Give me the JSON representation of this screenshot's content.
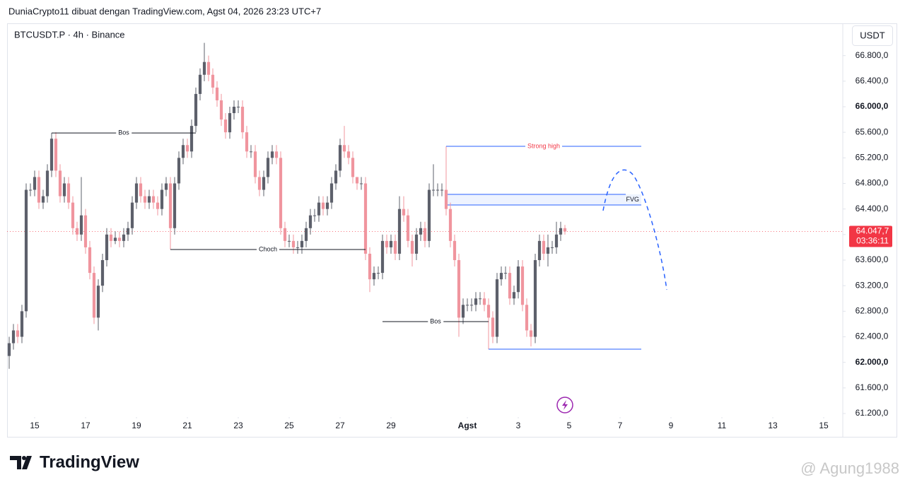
{
  "header": "DuniaCrypto11 dibuat dengan TradingView.com, Agst 04, 2026 23:23 UTC+7",
  "brand": "TradingView",
  "watermark": "@ Agung1988",
  "chart_data": {
    "type": "candlestick",
    "title": "BTCUSDT.P · 4h · Binance",
    "currency": "USDT",
    "up_color": "#5d606b",
    "down_color": "#f0959e",
    "open": [
      62100,
      62300,
      62500,
      62400,
      62800,
      64700,
      64700,
      64900,
      64500,
      64600,
      65000,
      65500,
      65000,
      64600,
      64800,
      64500,
      64100,
      64000,
      64300,
      63800,
      63400,
      62700,
      63200,
      63600,
      64000,
      63900,
      63950,
      63900,
      64000,
      64100,
      64500,
      64800,
      64600,
      64500,
      64600,
      64500,
      64400,
      64700,
      64800,
      64100,
      64800,
      65200,
      65400,
      65300,
      65700,
      66200,
      66500,
      66700,
      66500,
      66300,
      66100,
      65800,
      65600,
      65900,
      66000,
      66000,
      65600,
      65300,
      65300,
      64900,
      64700,
      64900,
      65200,
      65300,
      65200,
      64100,
      63900,
      63900,
      63800,
      63800,
      63900,
      64100,
      64300,
      64300,
      64500,
      64400,
      64500,
      64800,
      65000,
      65400,
      65300,
      65200,
      64900,
      64800,
      64800,
      63700,
      63300,
      63400,
      63400,
      63900,
      63800,
      63900,
      63700,
      64400,
      64300,
      63900,
      63700,
      64000,
      64100,
      63900,
      64700,
      64700,
      64700,
      64700,
      64400,
      63900,
      63600,
      62700,
      62900,
      62900,
      62900,
      63000,
      63000,
      62900,
      62700,
      62400,
      63300,
      63400,
      63400,
      63000,
      63100,
      63500,
      62900,
      62500,
      62400,
      63600,
      63900,
      63700,
      63800,
      63800,
      64000,
      64100
    ],
    "high": [
      62400,
      62600,
      62600,
      62900,
      64800,
      64800,
      65000,
      65000,
      64700,
      65100,
      65590,
      65600,
      65100,
      64900,
      64900,
      64600,
      64200,
      64900,
      64400,
      63900,
      63500,
      63300,
      63700,
      64100,
      64100,
      64050,
      64050,
      64100,
      64200,
      64600,
      64900,
      64900,
      64700,
      64700,
      64700,
      64600,
      64800,
      64900,
      64900,
      64900,
      65300,
      65500,
      65500,
      65800,
      66300,
      66600,
      67000,
      66800,
      66600,
      66400,
      66200,
      65900,
      66000,
      66100,
      66100,
      66100,
      65700,
      65400,
      65400,
      65000,
      65000,
      65300,
      65400,
      65400,
      65300,
      64200,
      64000,
      64000,
      63900,
      64000,
      64200,
      64400,
      64400,
      64600,
      64600,
      64600,
      64900,
      65100,
      65500,
      65700,
      65400,
      65300,
      64900,
      64900,
      64900,
      63800,
      63500,
      63500,
      64000,
      64000,
      64000,
      64000,
      64600,
      64600,
      64400,
      64000,
      64100,
      64200,
      64200,
      64800,
      65100,
      64800,
      64800,
      65380,
      64500,
      64000,
      63700,
      63000,
      63000,
      63000,
      63100,
      63100,
      63100,
      63000,
      62800,
      63400,
      63500,
      63500,
      63500,
      63200,
      63600,
      63600,
      63000,
      62600,
      63700,
      64000,
      64000,
      64000,
      63900,
      64200,
      64200,
      64150
    ],
    "low": [
      61900,
      62200,
      62300,
      62300,
      62700,
      64600,
      64600,
      64400,
      64400,
      64500,
      64900,
      64900,
      64500,
      64500,
      64400,
      64000,
      63900,
      63900,
      63700,
      63300,
      62600,
      62500,
      63100,
      63500,
      63800,
      63850,
      63800,
      63800,
      63900,
      64000,
      64400,
      64500,
      64400,
      64400,
      64400,
      64300,
      64300,
      64600,
      63766,
      64000,
      64700,
      65100,
      65200,
      65200,
      65600,
      66100,
      66400,
      66400,
      66200,
      66000,
      65700,
      65500,
      65500,
      65800,
      65900,
      65500,
      65200,
      65200,
      64800,
      64600,
      64600,
      64800,
      65100,
      65100,
      64000,
      63800,
      63800,
      63700,
      63700,
      63700,
      63800,
      64000,
      64200,
      64200,
      64300,
      64300,
      64400,
      64700,
      64900,
      65200,
      65100,
      64800,
      64700,
      64700,
      63600,
      63100,
      63200,
      63300,
      63300,
      63700,
      63700,
      63600,
      63600,
      64200,
      63800,
      63500,
      63600,
      63900,
      63800,
      63800,
      64600,
      64600,
      64600,
      64300,
      63800,
      63500,
      62400,
      62600,
      62800,
      62800,
      62800,
      62900,
      62800,
      62206,
      62300,
      62300,
      63200,
      63300,
      62900,
      62900,
      63000,
      62800,
      62400,
      62250,
      62300,
      63500,
      63600,
      63500,
      63700,
      63700,
      63900,
      64000
    ],
    "close": [
      62300,
      62500,
      62400,
      62800,
      64700,
      64700,
      64900,
      64500,
      64600,
      65000,
      65500,
      65000,
      64600,
      64800,
      64500,
      64100,
      64000,
      64300,
      63800,
      63400,
      62700,
      63200,
      63600,
      64000,
      63900,
      63950,
      63900,
      64000,
      64100,
      64500,
      64800,
      64600,
      64500,
      64600,
      64500,
      64400,
      64700,
      64800,
      64100,
      64800,
      65200,
      65400,
      65300,
      65700,
      66200,
      66500,
      66700,
      66500,
      66300,
      66100,
      65800,
      65600,
      65900,
      66000,
      66000,
      65600,
      65300,
      65300,
      64900,
      64700,
      64900,
      65200,
      65300,
      65200,
      64100,
      63900,
      63900,
      63800,
      63800,
      63900,
      64100,
      64300,
      64300,
      64500,
      64400,
      64500,
      64800,
      65000,
      65400,
      65300,
      65200,
      64900,
      64800,
      64800,
      63700,
      63300,
      63400,
      63400,
      63900,
      63800,
      63900,
      63700,
      64400,
      64300,
      63900,
      63700,
      64000,
      64100,
      63900,
      64700,
      64700,
      64700,
      64700,
      64400,
      63900,
      63600,
      62700,
      62900,
      62900,
      62900,
      63000,
      63000,
      62900,
      62700,
      62400,
      63300,
      63400,
      63400,
      63000,
      63100,
      63500,
      62900,
      62500,
      62400,
      63600,
      63900,
      63700,
      63800,
      63800,
      64000,
      64100,
      64047.7
    ],
    "last_price_label": "64.047,7",
    "countdown": "03:36:11",
    "last_price_color": "#f23645",
    "xlim": [
      -0.5,
      196.5
    ],
    "xticks": [
      {
        "value": 6,
        "label": "15"
      },
      {
        "value": 18,
        "label": "17"
      },
      {
        "value": 30,
        "label": "19"
      },
      {
        "value": 42,
        "label": "21"
      },
      {
        "value": 54,
        "label": "23"
      },
      {
        "value": 66,
        "label": "25"
      },
      {
        "value": 78,
        "label": "27"
      },
      {
        "value": 90,
        "label": "29"
      },
      {
        "value": 108,
        "label": "Agst",
        "bold": true
      },
      {
        "value": 120,
        "label": "3"
      },
      {
        "value": 132,
        "label": "5"
      },
      {
        "value": 144,
        "label": "7"
      },
      {
        "value": 156,
        "label": "9"
      },
      {
        "value": 168,
        "label": "11"
      },
      {
        "value": 180,
        "label": "13"
      },
      {
        "value": 192,
        "label": "15"
      }
    ],
    "ylim": [
      61200,
      67200
    ],
    "yticks": [
      {
        "value": 61200,
        "label": "61.200,0"
      },
      {
        "value": 61600,
        "label": "61.600,0"
      },
      {
        "value": 62000,
        "label": "62.000,0",
        "bold": true
      },
      {
        "value": 62400,
        "label": "62.400,0"
      },
      {
        "value": 62800,
        "label": "62.800,0"
      },
      {
        "value": 63200,
        "label": "63.200,0"
      },
      {
        "value": 63600,
        "label": "63.600,0"
      },
      {
        "value": 64000,
        "label": "64.000,0"
      },
      {
        "value": 64400,
        "label": "64.400,0"
      },
      {
        "value": 64800,
        "label": "64.800,0"
      },
      {
        "value": 65200,
        "label": "65.200,0"
      },
      {
        "value": 65600,
        "label": "65.600,0"
      },
      {
        "value": 66000,
        "label": "66.000,0",
        "bold": true
      },
      {
        "value": 66400,
        "label": "66.400,0"
      },
      {
        "value": 66800,
        "label": "66.800,0"
      }
    ],
    "levels": [
      {
        "label": "Bos",
        "value": 65590,
        "start": 10,
        "end": 44,
        "color": "#131722",
        "text_color": "#131722"
      },
      {
        "label": "Choch",
        "value": 63766,
        "start": 38,
        "end": 84,
        "color": "#131722",
        "text_color": "#131722"
      },
      {
        "label": "Bos",
        "value": 62638,
        "start": 88,
        "end": 113,
        "color": "#131722",
        "text_color": "#131722"
      },
      {
        "label": "Strong high",
        "value": 65380,
        "start": 103,
        "end": 149,
        "color": "#2962ff",
        "text_color": "#f23645"
      },
      {
        "value": 62206,
        "start": 113,
        "end": 149,
        "color": "#2962ff"
      }
    ],
    "zones": [
      {
        "label": "FVG",
        "top": 64628,
        "bottom": 64463,
        "start": 103,
        "end": 149,
        "color": "#2962ff"
      }
    ]
  }
}
